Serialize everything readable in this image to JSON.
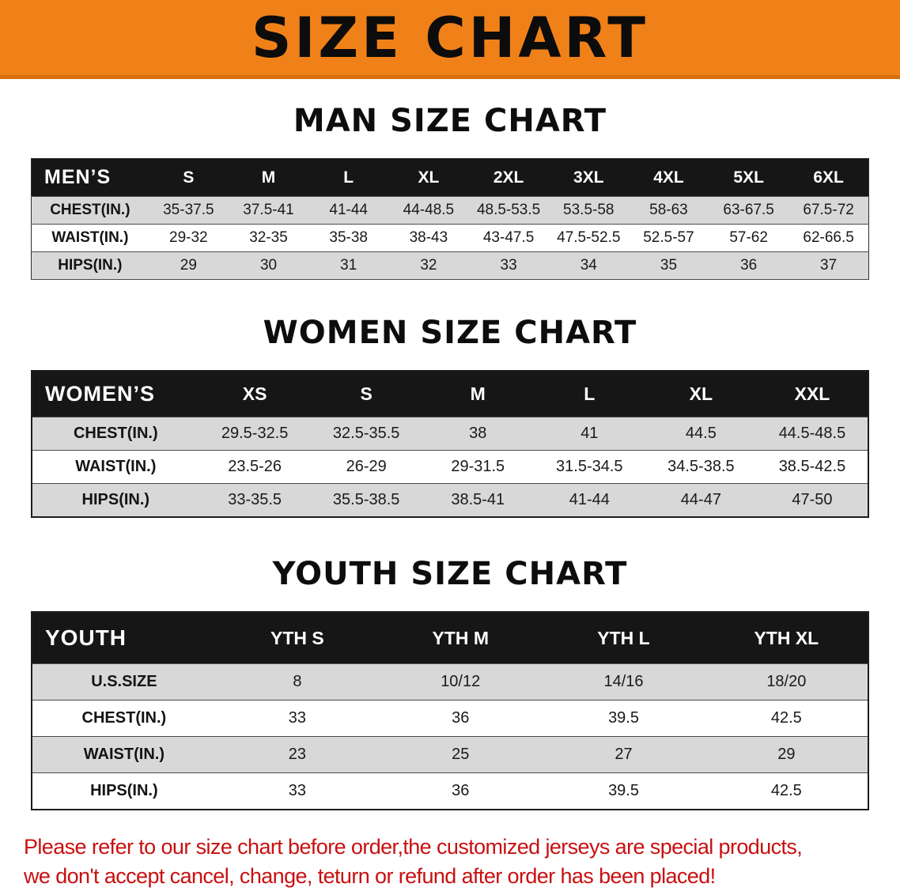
{
  "banner": {
    "title": "SIZE CHART"
  },
  "colors": {
    "banner_bg": "#f08119",
    "table_header_bg": "#161616",
    "row_alt_bg": "#d8d8d8",
    "footer_text": "#c81010"
  },
  "sections": [
    {
      "heading": "MAN SIZE CHART",
      "table": {
        "header": [
          "MEN’S",
          "S",
          "M",
          "L",
          "XL",
          "2XL",
          "3XL",
          "4XL",
          "5XL",
          "6XL"
        ],
        "rows": [
          [
            "CHEST(IN.)",
            "35-37.5",
            "37.5-41",
            "41-44",
            "44-48.5",
            "48.5-53.5",
            "53.5-58",
            "58-63",
            "63-67.5",
            "67.5-72"
          ],
          [
            "WAIST(IN.)",
            "29-32",
            "32-35",
            "35-38",
            "38-43",
            "43-47.5",
            "47.5-52.5",
            "52.5-57",
            "57-62",
            "62-66.5"
          ],
          [
            "HIPS(IN.)",
            "29",
            "30",
            "31",
            "32",
            "33",
            "34",
            "35",
            "36",
            "37"
          ]
        ]
      }
    },
    {
      "heading": "WOMEN SIZE CHART",
      "table": {
        "header": [
          "WOMEN’S",
          "XS",
          "S",
          "M",
          "L",
          "XL",
          "XXL"
        ],
        "rows": [
          [
            "CHEST(IN.)",
            "29.5-32.5",
            "32.5-35.5",
            "38",
            "41",
            "44.5",
            "44.5-48.5"
          ],
          [
            "WAIST(IN.)",
            "23.5-26",
            "26-29",
            "29-31.5",
            "31.5-34.5",
            "34.5-38.5",
            "38.5-42.5"
          ],
          [
            "HIPS(IN.)",
            "33-35.5",
            "35.5-38.5",
            "38.5-41",
            "41-44",
            "44-47",
            "47-50"
          ]
        ]
      }
    },
    {
      "heading": "YOUTH SIZE CHART",
      "table": {
        "header": [
          "YOUTH",
          "YTH S",
          "YTH M",
          "YTH L",
          "YTH XL"
        ],
        "rows": [
          [
            "U.S.SIZE",
            "8",
            "10/12",
            "14/16",
            "18/20"
          ],
          [
            "CHEST(IN.)",
            "33",
            "36",
            "39.5",
            "42.5"
          ],
          [
            "WAIST(IN.)",
            "23",
            "25",
            "27",
            "29"
          ],
          [
            "HIPS(IN.)",
            "33",
            "36",
            "39.5",
            "42.5"
          ]
        ]
      }
    }
  ],
  "footer": {
    "line1": "Please refer to our size chart before order,the customized jerseys are special products,",
    "line2": "we don't accept cancel, change, teturn or refund after order has been placed!"
  }
}
